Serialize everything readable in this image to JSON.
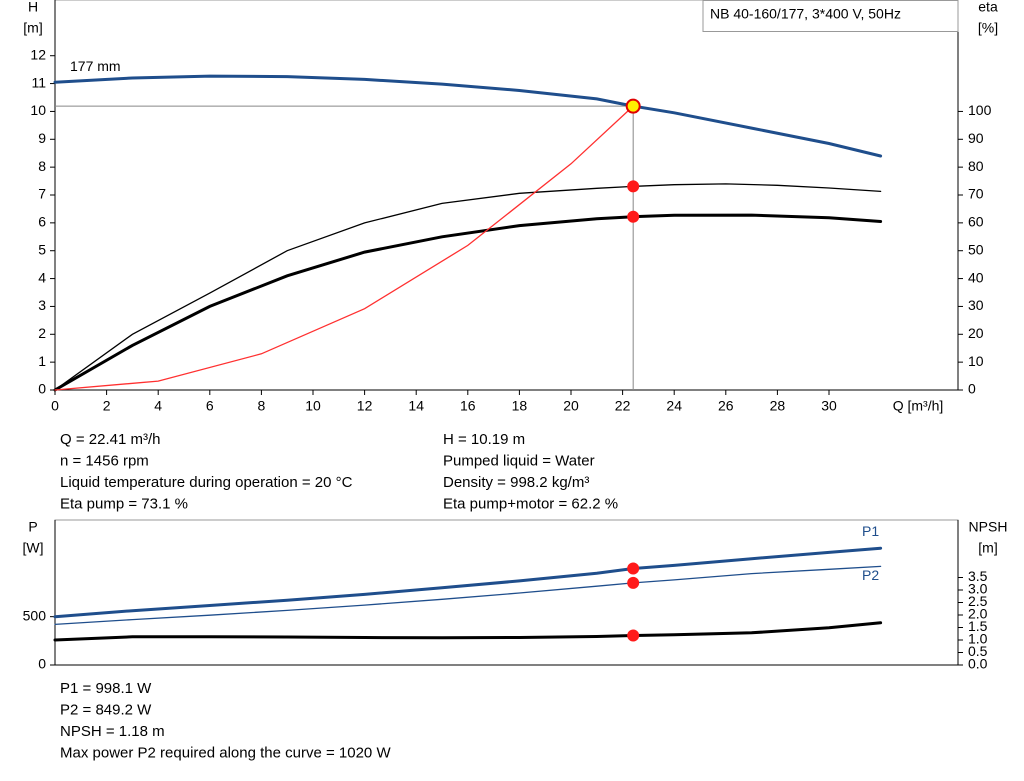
{
  "chart_data": [
    {
      "type": "line",
      "title": "NB 40-160/177, 3*400 V, 50Hz",
      "y_label": "H",
      "y_unit": "[m]",
      "y2_label": "eta",
      "y2_unit": "[%]",
      "x_label": "Q [m³/h]",
      "xlim": [
        0,
        35
      ],
      "xticks": [
        0,
        2,
        4,
        6,
        8,
        10,
        12,
        14,
        16,
        18,
        20,
        22,
        24,
        26,
        28,
        30
      ],
      "ylim": [
        0,
        14
      ],
      "yticks": [
        0,
        1,
        2,
        3,
        4,
        5,
        6,
        7,
        8,
        9,
        10,
        11,
        12
      ],
      "y2lim": [
        0,
        140
      ],
      "y2ticks": [
        0,
        10,
        20,
        30,
        40,
        50,
        60,
        70,
        80,
        90,
        100
      ],
      "operating_point": {
        "x": 22.41,
        "y": 10.19
      },
      "series": [
        {
          "name": "177 mm",
          "color": "#1f4e8c",
          "x": [
            0,
            3,
            6,
            9,
            12,
            15,
            18,
            21,
            22.41,
            24,
            27,
            30,
            32
          ],
          "values": [
            11.05,
            11.2,
            11.27,
            11.25,
            11.15,
            10.98,
            10.75,
            10.45,
            10.19,
            9.95,
            9.4,
            8.85,
            8.4
          ]
        },
        {
          "color": "#000000",
          "axis": "y2",
          "line_style": "thin",
          "x": [
            0,
            3,
            6,
            9,
            12,
            15,
            18,
            21,
            22.41,
            24,
            26,
            28,
            30,
            32
          ],
          "values": [
            0,
            20,
            34.8,
            50,
            60,
            67,
            70.6,
            72.4,
            73.1,
            73.7,
            74,
            73.5,
            72.5,
            71.3
          ]
        },
        {
          "color": "#000000",
          "axis": "y2",
          "x": [
            0,
            3,
            6,
            9,
            12,
            15,
            18,
            21,
            22.41,
            24,
            27,
            30,
            32
          ],
          "values": [
            0,
            16,
            30,
            41,
            49.5,
            55,
            59,
            61.5,
            62.2,
            62.7,
            62.8,
            61.8,
            60.5
          ]
        },
        {
          "color": "#ff3030",
          "line_style": "thin",
          "x": [
            0,
            4,
            8,
            12,
            16,
            20,
            22.41
          ],
          "values": [
            0,
            0.32,
            1.3,
            2.92,
            5.19,
            8.12,
            10.19
          ]
        }
      ],
      "info_left": [
        "Q = 22.41 m³/h",
        "n = 1456 rpm",
        "Liquid temperature during operation = 20 °C",
        "Eta pump = 73.1 %"
      ],
      "info_right": [
        "H = 10.19 m",
        "Pumped liquid = Water",
        "Density = 998.2 kg/m³",
        "Eta pump+motor = 62.2 %"
      ]
    },
    {
      "type": "line",
      "y_label": "P",
      "y_unit": "[W]",
      "y2_label": "NPSH",
      "y2_unit": "[m]",
      "xlim": [
        0,
        35
      ],
      "ylim": [
        0,
        1500
      ],
      "yticks": [
        0,
        500
      ],
      "y2lim": [
        0,
        5.8
      ],
      "y2ticks": [
        {
          "value": 0,
          "label": "0.0"
        },
        0.5,
        {
          "value": 1,
          "label": "1.0"
        },
        1.5,
        {
          "value": 2,
          "label": "2.0"
        },
        2.5,
        {
          "value": 3,
          "label": "3.0"
        },
        3.5
      ],
      "operating_point": {
        "x": 22.41
      },
      "series": [
        {
          "name": "P1",
          "color": "#1f4e8c",
          "x": [
            0,
            3,
            6,
            9,
            12,
            15,
            18,
            21,
            22.41,
            24,
            27,
            30,
            32
          ],
          "values": [
            500,
            562,
            615,
            670,
            730,
            800,
            870,
            950,
            998.1,
            1030,
            1100,
            1165,
            1208
          ]
        },
        {
          "name": "P2",
          "color": "#1f4e8c",
          "line_style": "thin",
          "x": [
            0,
            3,
            6,
            9,
            12,
            15,
            18,
            21,
            22.41,
            24,
            27,
            30,
            32
          ],
          "values": [
            420,
            470,
            515,
            565,
            620,
            680,
            745,
            815,
            849.2,
            880,
            945,
            990,
            1020
          ]
        },
        {
          "color": "#000000",
          "axis": "y2",
          "x": [
            0,
            3,
            6,
            9,
            12,
            15,
            18,
            21,
            22.41,
            24,
            27,
            30,
            32
          ],
          "values": [
            1.0,
            1.13,
            1.13,
            1.12,
            1.1,
            1.09,
            1.1,
            1.14,
            1.18,
            1.21,
            1.29,
            1.49,
            1.69
          ]
        }
      ],
      "info_left": [
        "P1 = 998.1 W",
        "P2 = 849.2 W",
        "NPSH = 1.18 m",
        "Max power P2 required along the curve = 1020 W"
      ]
    }
  ]
}
